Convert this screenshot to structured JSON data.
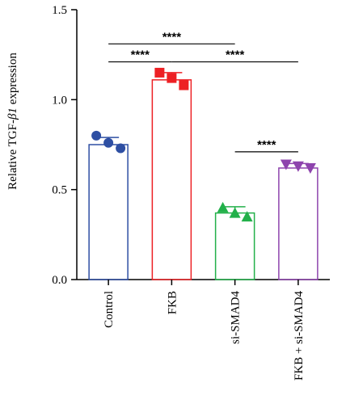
{
  "chart_data": {
    "type": "bar",
    "ylabel_prefix": "Relative TGF-",
    "ylabel_symbol": "β1",
    "ylabel_suffix": " expression",
    "ylim": [
      0,
      1.5
    ],
    "yticks": [
      "0.0",
      "0.5",
      "1.0",
      "1.5"
    ],
    "ytick_values": [
      0,
      0.5,
      1.0,
      1.5
    ],
    "categories": [
      "Control",
      "FKB",
      "si-SMAD4",
      "FKB + si-SMAD4"
    ],
    "values": [
      0.75,
      1.11,
      0.37,
      0.62
    ],
    "errors": [
      0.04,
      0.04,
      0.035,
      0.025
    ],
    "points": [
      [
        0.8,
        0.76,
        0.73
      ],
      [
        1.15,
        1.12,
        1.08
      ],
      [
        0.4,
        0.37,
        0.35
      ],
      [
        0.64,
        0.63,
        0.62
      ]
    ],
    "colors": [
      "#2e4fa3",
      "#ed2024",
      "#22b04a",
      "#8e44ad"
    ],
    "markers": [
      "circle",
      "square",
      "triangle-up",
      "triangle-down"
    ],
    "significance": [
      {
        "from": 0,
        "to": 2,
        "y": 1.31,
        "label": "****"
      },
      {
        "from": 0,
        "to": 1,
        "y": 1.21,
        "label": "****"
      },
      {
        "from": 1,
        "to": 3,
        "y": 1.21,
        "label": "****"
      },
      {
        "from": 2,
        "to": 3,
        "y": 0.71,
        "label": "****"
      }
    ]
  }
}
